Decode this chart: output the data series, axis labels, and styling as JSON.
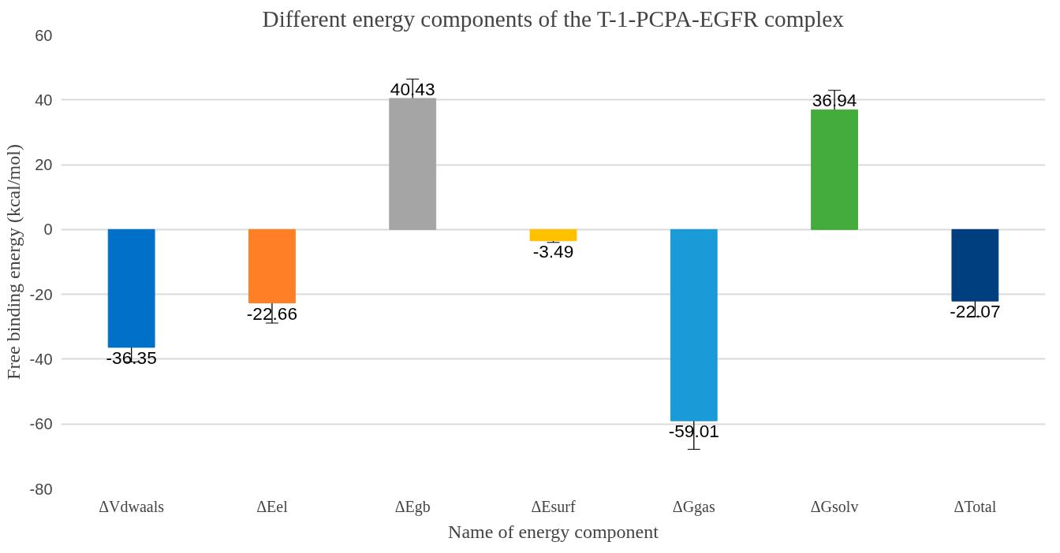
{
  "chart_data": {
    "type": "bar",
    "title": "Different energy components of the T-1-PCPA-EGFR complex",
    "xlabel": "Name of energy component",
    "ylabel": "Free binding energy (kcal/mol)",
    "categories": [
      "ΔVdwaals",
      "ΔEel",
      "ΔEgb",
      "ΔEsurf",
      "ΔGgas",
      "ΔGsolv",
      "ΔTotal"
    ],
    "values": [
      -36.35,
      -22.66,
      40.43,
      -3.49,
      -59.01,
      36.94,
      -22.07
    ],
    "colors": [
      "#0070c8",
      "#ff7f27",
      "#a5a5a5",
      "#ffc000",
      "#1a9bd7",
      "#44ac3c",
      "#003f7f"
    ],
    "errors": [
      4.5,
      6.2,
      6,
      0.5,
      8.8,
      6,
      4.8
    ],
    "data_labels": true,
    "ylim": [
      -80,
      60
    ],
    "yticks": [
      -80,
      -60,
      -40,
      -20,
      0,
      20,
      40,
      60
    ],
    "grid": "y"
  }
}
